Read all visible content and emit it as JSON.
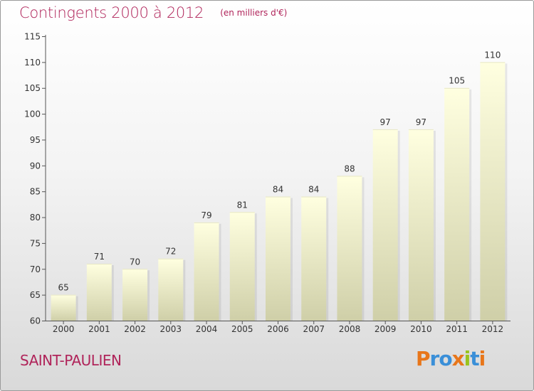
{
  "chart_data": {
    "type": "bar",
    "title": "Contingents 2000 à 2012",
    "subtitle": "(en milliers d'€)",
    "categories": [
      "2000",
      "2001",
      "2002",
      "2003",
      "2004",
      "2005",
      "2006",
      "2007",
      "2008",
      "2009",
      "2010",
      "2011",
      "2012"
    ],
    "values": [
      65,
      71,
      70,
      72,
      79,
      81,
      84,
      84,
      88,
      97,
      97,
      105,
      110
    ],
    "ylim": [
      60,
      115
    ],
    "yticks": [
      60,
      65,
      70,
      75,
      80,
      85,
      90,
      95,
      100,
      105,
      110,
      115
    ],
    "xlabel": "",
    "ylabel": "",
    "grid": false,
    "bar_color_top": "#ffffe0",
    "bar_color_bottom": "#cfcfa8"
  },
  "footer": {
    "commune": "SAINT-PAULIEN",
    "logo_text": "Proxiti",
    "logo_colors": [
      "#e8761a",
      "#3a8fd8",
      "#3a8fd8",
      "#e8761a",
      "#9ac31c",
      "#3a8fd8",
      "#e8761a"
    ]
  },
  "colors": {
    "title": "#b0245a",
    "axis": "#555555"
  }
}
